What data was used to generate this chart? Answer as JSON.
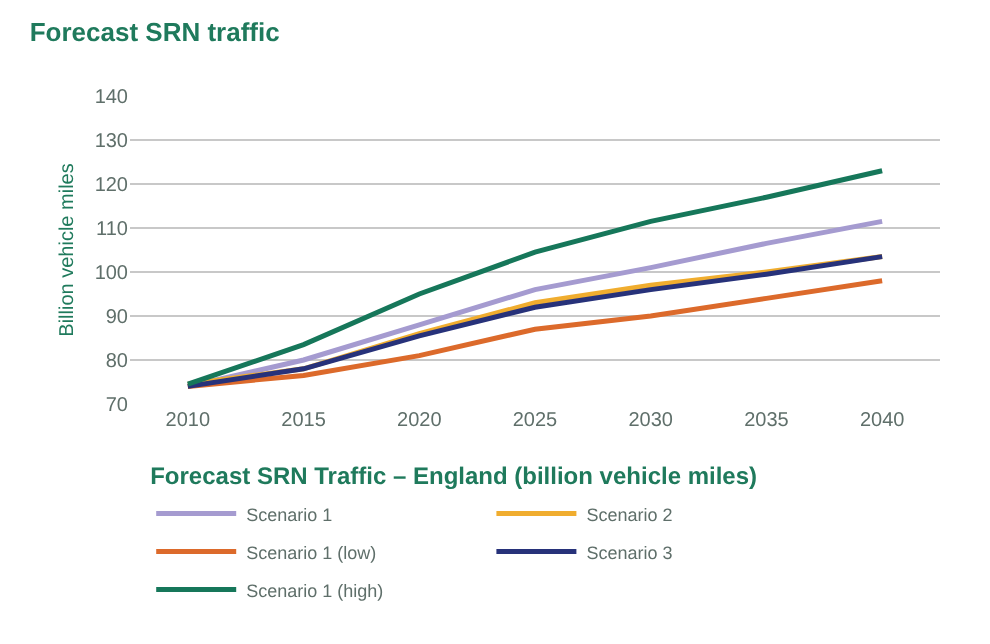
{
  "chart_data": {
    "type": "line",
    "title": "Forecast SRN traffic",
    "ylabel": "Billion vehicle miles",
    "legend_title": "Forecast SRN Traffic – England (billion vehicle miles)",
    "x": [
      2010,
      2015,
      2020,
      2025,
      2030,
      2035,
      2040
    ],
    "xlim": [
      2007.5,
      2042.5
    ],
    "xticks": [
      2010,
      2015,
      2020,
      2025,
      2030,
      2035,
      2040
    ],
    "ylim": [
      70,
      140
    ],
    "yticks": [
      70,
      80,
      90,
      100,
      110,
      120,
      130,
      140
    ],
    "grid": "y",
    "legend": "bottom",
    "marker": "none",
    "line_style": "solid",
    "series": [
      {
        "name": "Scenario 1",
        "color": "#a59bd0",
        "values": [
          74,
          80,
          88,
          96,
          101,
          106.5,
          111.5
        ]
      },
      {
        "name": "Scenario 2",
        "color": "#f0ad2f",
        "values": [
          74.5,
          78,
          86,
          93,
          97,
          100,
          103.5
        ]
      },
      {
        "name": "Scenario 1 (low)",
        "color": "#dc6a2b",
        "values": [
          74,
          76.5,
          81,
          87,
          90,
          94,
          98
        ]
      },
      {
        "name": "Scenario 3",
        "color": "#27327a",
        "values": [
          74,
          78,
          85.5,
          92,
          96,
          99.5,
          103.5
        ]
      },
      {
        "name": "Scenario 1 (high)",
        "color": "#16775a",
        "values": [
          74.5,
          83.5,
          95,
          104.5,
          111.5,
          117,
          123
        ]
      }
    ]
  }
}
